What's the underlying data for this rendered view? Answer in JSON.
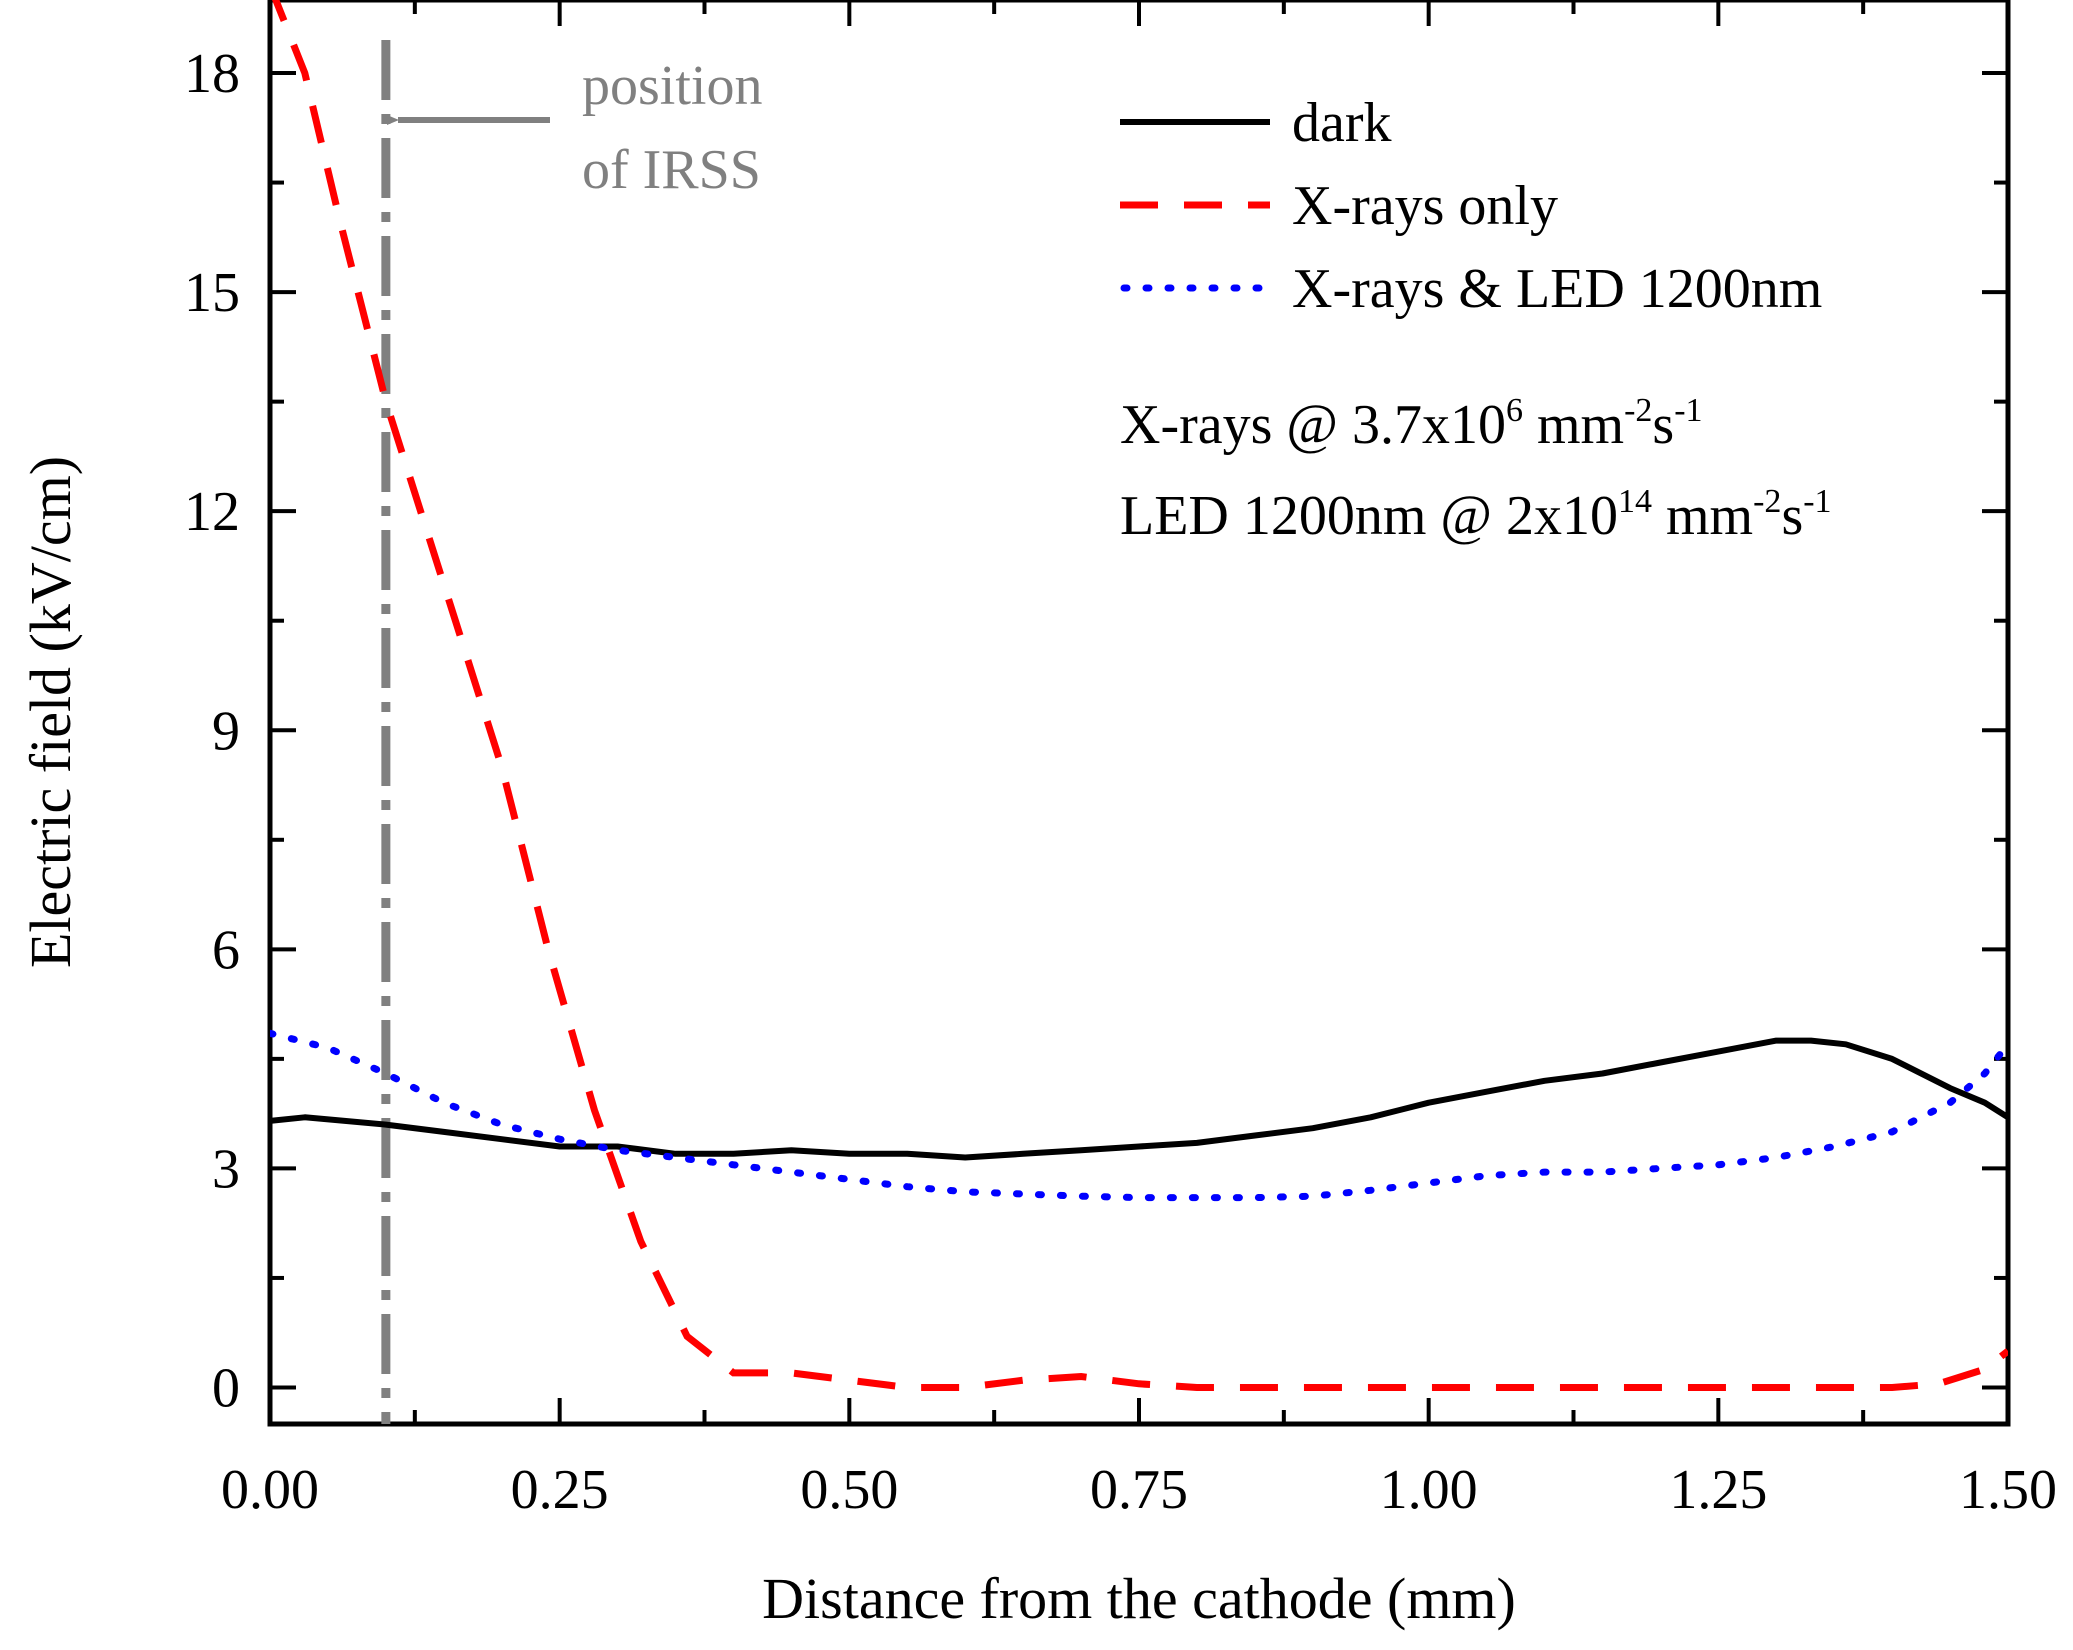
{
  "chart_data": {
    "type": "line",
    "xlabel": "Distance from the cathode (mm)",
    "ylabel": "Electric field (kV/cm)",
    "xlim": [
      0,
      1.5
    ],
    "ylim": [
      -0.5,
      19
    ],
    "xticks": [
      {
        "value": 0,
        "label": "0.00"
      },
      {
        "value": 0.25,
        "label": "0.25"
      },
      {
        "value": 0.5,
        "label": "0.50"
      },
      {
        "value": 0.75,
        "label": "0.75"
      },
      {
        "value": 1.0,
        "label": "1.00"
      },
      {
        "value": 1.25,
        "label": "1.25"
      },
      {
        "value": 1.5,
        "label": "1.50"
      }
    ],
    "yticks": [
      {
        "value": 0,
        "label": "0"
      },
      {
        "value": 3,
        "label": "3"
      },
      {
        "value": 6,
        "label": "6"
      },
      {
        "value": 9,
        "label": "9"
      },
      {
        "value": 12,
        "label": "12"
      },
      {
        "value": 15,
        "label": "15"
      },
      {
        "value": 18,
        "label": "18"
      }
    ],
    "series": [
      {
        "name": "dark",
        "color": "#000000",
        "style": "solid",
        "x": [
          0,
          0.03,
          0.1,
          0.15,
          0.2,
          0.25,
          0.3,
          0.35,
          0.4,
          0.45,
          0.5,
          0.55,
          0.6,
          0.65,
          0.7,
          0.75,
          0.8,
          0.85,
          0.9,
          0.95,
          1.0,
          1.05,
          1.1,
          1.15,
          1.2,
          1.25,
          1.3,
          1.33,
          1.36,
          1.4,
          1.45,
          1.48,
          1.5
        ],
        "y": [
          3.65,
          3.7,
          3.6,
          3.5,
          3.4,
          3.3,
          3.3,
          3.2,
          3.2,
          3.25,
          3.2,
          3.2,
          3.15,
          3.2,
          3.25,
          3.3,
          3.35,
          3.45,
          3.55,
          3.7,
          3.9,
          4.05,
          4.2,
          4.3,
          4.45,
          4.6,
          4.75,
          4.75,
          4.7,
          4.5,
          4.1,
          3.9,
          3.7
        ]
      },
      {
        "name": "X-rays only",
        "color": "#ff0000",
        "style": "dashed",
        "x": [
          0,
          0.03,
          0.06,
          0.1,
          0.13,
          0.16,
          0.2,
          0.24,
          0.28,
          0.32,
          0.36,
          0.4,
          0.45,
          0.5,
          0.55,
          0.6,
          0.65,
          0.7,
          0.75,
          0.8,
          0.9,
          1.0,
          1.1,
          1.2,
          1.3,
          1.4,
          1.44,
          1.48,
          1.5
        ],
        "y": [
          19.2,
          18.0,
          16.0,
          13.5,
          12.0,
          10.5,
          8.5,
          6.0,
          3.8,
          2.0,
          0.7,
          0.2,
          0.2,
          0.1,
          0.0,
          0.0,
          0.1,
          0.15,
          0.05,
          0.0,
          0.0,
          0.0,
          0.0,
          0.0,
          0.0,
          0.0,
          0.05,
          0.25,
          0.5
        ]
      },
      {
        "name": "X-rays & LED 1200nm",
        "color": "#0000ff",
        "style": "dotted",
        "x": [
          0,
          0.05,
          0.1,
          0.15,
          0.2,
          0.25,
          0.3,
          0.35,
          0.4,
          0.45,
          0.5,
          0.55,
          0.6,
          0.65,
          0.7,
          0.75,
          0.8,
          0.85,
          0.9,
          0.95,
          1.0,
          1.05,
          1.1,
          1.15,
          1.2,
          1.25,
          1.3,
          1.35,
          1.4,
          1.45,
          1.48,
          1.5
        ],
        "y": [
          4.85,
          4.65,
          4.3,
          3.9,
          3.6,
          3.4,
          3.25,
          3.15,
          3.05,
          2.95,
          2.85,
          2.75,
          2.68,
          2.65,
          2.62,
          2.6,
          2.6,
          2.6,
          2.62,
          2.7,
          2.8,
          2.9,
          2.95,
          2.95,
          3.0,
          3.05,
          3.15,
          3.3,
          3.5,
          3.9,
          4.3,
          4.7
        ]
      }
    ],
    "legend": {
      "position": "top-right",
      "entries": [
        "dark",
        "X-rays only",
        "X-rays & LED 1200nm"
      ]
    },
    "annotations": {
      "irss": {
        "x": 0.1,
        "label_line1": "position",
        "label_line2": "of IRSS",
        "color": "#808080"
      },
      "xray_condition": {
        "prefix": "X-rays @ 3.7x10",
        "exponent": "6",
        "unit": " mm",
        "unit_exp1": "-2",
        "unit_mid": "s",
        "unit_exp2": "-1"
      },
      "led_condition": {
        "prefix": "LED 1200nm @ 2x10",
        "exponent": "14",
        "unit": " mm",
        "unit_exp1": "-2",
        "unit_mid": "s",
        "unit_exp2": "-1"
      }
    }
  }
}
